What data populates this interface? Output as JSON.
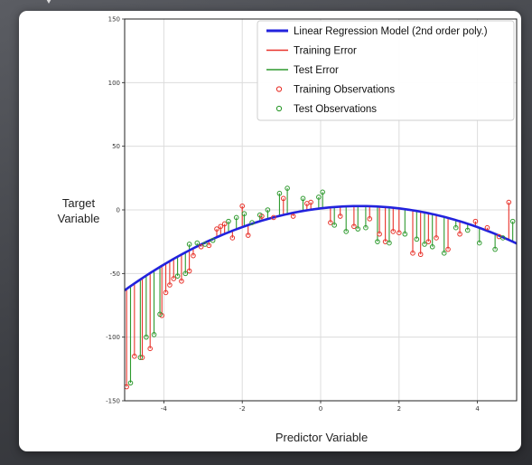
{
  "chart_data": {
    "type": "scatter",
    "title": "",
    "xlabel": "Predictor Variable",
    "ylabel": [
      "Target",
      "Variable"
    ],
    "xlim": [
      -5,
      5
    ],
    "ylim": [
      -150,
      150
    ],
    "xticks": [
      -4,
      -2,
      0,
      2,
      4
    ],
    "yticks": [
      150,
      100,
      50,
      0,
      -50,
      -100,
      -150
    ],
    "grid": true,
    "legend_position": "top-right",
    "legend": [
      {
        "label": "Linear Regression Model (2nd order poly.)",
        "kind": "line",
        "color": "#2222dd"
      },
      {
        "label": "Training Error",
        "kind": "line",
        "color": "#e8322a"
      },
      {
        "label": "Test Error",
        "kind": "line",
        "color": "#2e9a2e"
      },
      {
        "label": "Training Observations",
        "kind": "marker",
        "color": "#e8322a"
      },
      {
        "label": "Test Observations",
        "kind": "marker",
        "color": "#2e9a2e"
      }
    ],
    "model": {
      "name": "Linear Regression Model (2nd order poly.)",
      "a": -1.84,
      "b": 3.68,
      "c": 1.17,
      "color": "#2222dd"
    },
    "training": {
      "name": "Training Observations",
      "color": "#e8322a",
      "x": [
        -4.95,
        -4.75,
        -4.55,
        -4.35,
        -4.05,
        -3.95,
        -3.85,
        -3.75,
        -3.55,
        -3.35,
        -3.25,
        -3.05,
        -2.85,
        -2.65,
        -2.55,
        -2.45,
        -2.25,
        -2.0,
        -1.85,
        -1.5,
        -1.2,
        -0.95,
        -0.7,
        -0.35,
        -0.25,
        0.25,
        0.5,
        0.85,
        1.25,
        1.5,
        1.65,
        1.85,
        2.0,
        2.35,
        2.55,
        2.75,
        2.95,
        3.25,
        3.55,
        3.95,
        4.25,
        4.55,
        4.8
      ],
      "y": [
        -139,
        -115,
        -116,
        -109,
        -83,
        -65,
        -59,
        -54,
        -56,
        -48,
        -36,
        -29,
        -28,
        -15,
        -13,
        -11,
        -22,
        3,
        -20,
        -5,
        -6,
        9,
        -5,
        5,
        6,
        -10,
        -5,
        -13,
        -7,
        -19,
        -25,
        -17,
        -18,
        -34,
        -35,
        -25,
        -22,
        -31,
        -19,
        -9,
        -14,
        -21,
        6
      ]
    },
    "test": {
      "name": "Test Observations",
      "color": "#2e9a2e",
      "x": [
        -4.85,
        -4.6,
        -4.45,
        -4.25,
        -4.1,
        -3.65,
        -3.45,
        -3.35,
        -3.15,
        -2.95,
        -2.75,
        -2.35,
        -2.15,
        -1.95,
        -1.75,
        -1.55,
        -1.35,
        -1.05,
        -0.85,
        -0.45,
        -0.05,
        0.05,
        0.35,
        0.65,
        0.95,
        1.15,
        1.45,
        1.75,
        2.15,
        2.45,
        2.65,
        2.85,
        3.15,
        3.45,
        3.75,
        4.05,
        4.45,
        4.65,
        4.9
      ],
      "y": [
        -136,
        -116,
        -100,
        -98,
        -82,
        -52,
        -50,
        -27,
        -26,
        -27,
        -24,
        -9,
        -6,
        -3,
        -10,
        -4,
        0,
        13,
        17,
        9,
        10,
        14,
        -12,
        -17,
        -15,
        -14,
        -25,
        -26,
        -19,
        -23,
        -27,
        -29,
        -34,
        -14,
        -16,
        -26,
        -31,
        -22,
        -9
      ]
    }
  }
}
